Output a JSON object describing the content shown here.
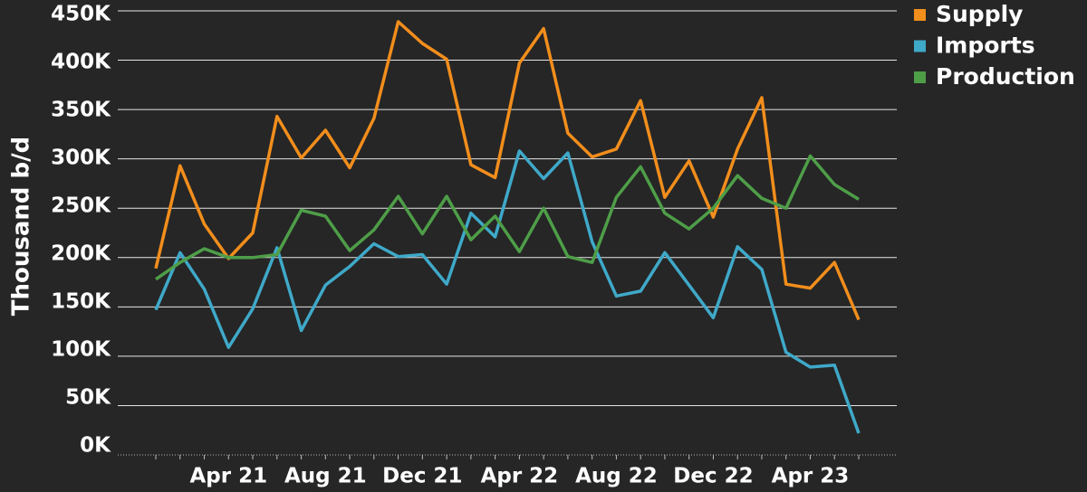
{
  "chart_data": {
    "type": "line",
    "y_label": "Thousand b/d",
    "categories": [
      null,
      null,
      null,
      "Apr 21",
      null,
      null,
      null,
      "Aug 21",
      null,
      null,
      null,
      "Dec 21",
      null,
      null,
      null,
      "Apr 22",
      null,
      null,
      null,
      "Aug 22",
      null,
      null,
      null,
      "Dec 22",
      null,
      null,
      null,
      "Apr 23",
      null,
      null
    ],
    "series": [
      {
        "name": "Supply",
        "color": "#f28e1c",
        "values": [
          189000,
          293000,
          234000,
          199000,
          225000,
          343000,
          301000,
          329000,
          291000,
          341000,
          439000,
          417000,
          401000,
          294000,
          281000,
          397000,
          432000,
          326000,
          302000,
          310000,
          359000,
          261000,
          298000,
          241000,
          310000,
          362000,
          173000,
          169000,
          195000,
          137000
        ]
      },
      {
        "name": "Imports",
        "color": "#3fa9c9",
        "values": [
          147000,
          205000,
          168000,
          109000,
          148000,
          210000,
          126000,
          172000,
          191000,
          214000,
          201000,
          203000,
          173000,
          245000,
          221000,
          308000,
          280000,
          306000,
          216000,
          161000,
          166000,
          205000,
          172000,
          139000,
          211000,
          188000,
          104000,
          89000,
          91000,
          22000
        ]
      },
      {
        "name": "Production",
        "color": "#4e9e48",
        "values": [
          178000,
          195000,
          209000,
          200000,
          200000,
          203000,
          248000,
          242000,
          207000,
          228000,
          262000,
          224000,
          262000,
          218000,
          242000,
          206000,
          250000,
          201000,
          195000,
          261000,
          292000,
          245000,
          229000,
          250000,
          283000,
          260000,
          250000,
          303000,
          274000,
          259000
        ]
      }
    ],
    "ylim": [
      0,
      450000
    ],
    "yticks": [
      {
        "value": 0,
        "label": "0K"
      },
      {
        "value": 50000,
        "label": "50K"
      },
      {
        "value": 100000,
        "label": "100K"
      },
      {
        "value": 150000,
        "label": "150K"
      },
      {
        "value": 200000,
        "label": "200K"
      },
      {
        "value": 250000,
        "label": "250K"
      },
      {
        "value": 300000,
        "label": "300K"
      },
      {
        "value": 350000,
        "label": "350K"
      },
      {
        "value": 400000,
        "label": "400K"
      },
      {
        "value": 450000,
        "label": "450K"
      }
    ],
    "grid": true,
    "legend": "top-right"
  }
}
